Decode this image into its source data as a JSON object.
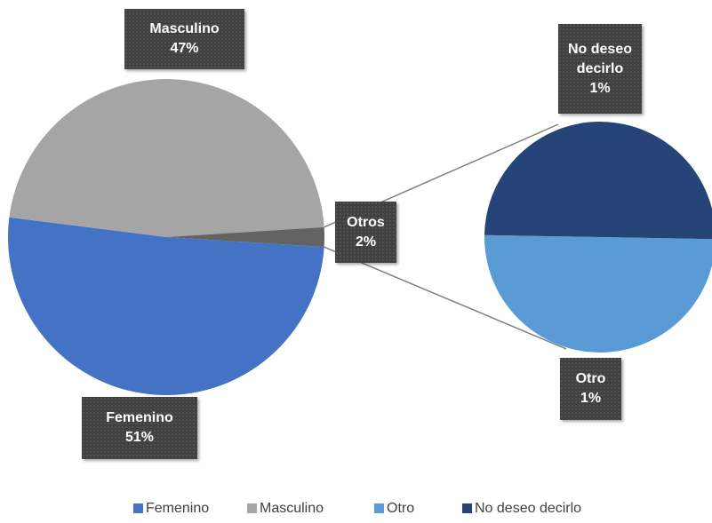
{
  "chart_data": {
    "type": "pie-of-pie",
    "categories": [
      "Femenino",
      "Masculino",
      "Otros"
    ],
    "values": [
      51,
      47,
      2
    ],
    "value_labels": [
      "51%",
      "47%",
      "2%"
    ],
    "colors": [
      "#4472c4",
      "#a5a5a5",
      "#636363"
    ],
    "secondary": {
      "categories": [
        "Otro",
        "No deseo decirlo"
      ],
      "values": [
        1,
        1
      ],
      "value_labels": [
        "1%",
        "1%"
      ],
      "colors": [
        "#5b9bd5",
        "#264478"
      ]
    }
  }
}
